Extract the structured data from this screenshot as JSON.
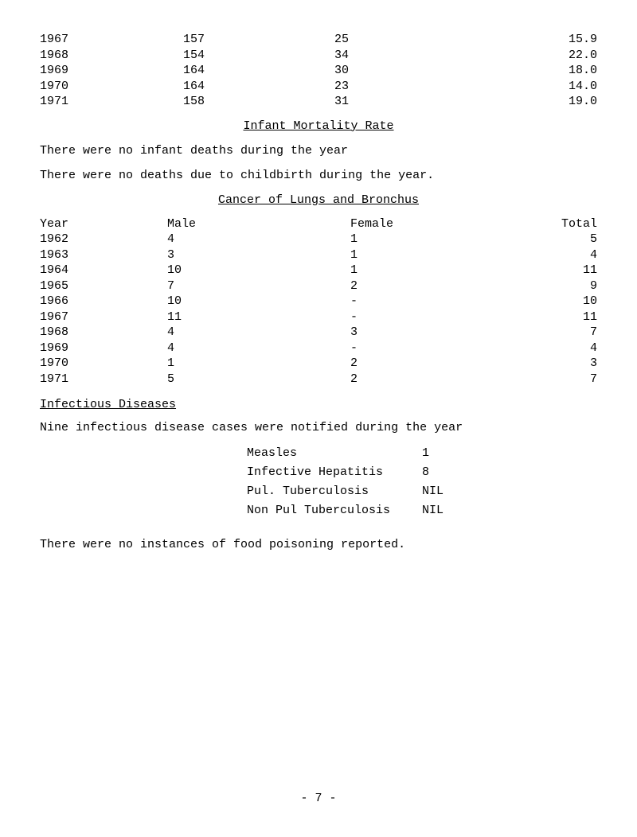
{
  "top_table": {
    "rows": [
      {
        "year": "1967",
        "a": "157",
        "b": "25",
        "c": "15.9"
      },
      {
        "year": "1968",
        "a": "154",
        "b": "34",
        "c": "22.0"
      },
      {
        "year": "1969",
        "a": "164",
        "b": "30",
        "c": "18.0"
      },
      {
        "year": "1970",
        "a": "164",
        "b": "23",
        "c": "14.0"
      },
      {
        "year": "1971",
        "a": "158",
        "b": "31",
        "c": "19.0"
      }
    ]
  },
  "infant_title": "Infant Mortality Rate",
  "infant_p1": "There were no infant deaths during the year",
  "infant_p2": "There were no deaths due to childbirth during the year.",
  "cancer_title": "Cancer of Lungs and Bronchus",
  "cancer_head": {
    "c1": "Year",
    "c2": "Male",
    "c3": "Female",
    "c4": "Total"
  },
  "cancer_rows": [
    {
      "y": "1962",
      "m": "4",
      "f": "1",
      "t": "5"
    },
    {
      "y": "1963",
      "m": "3",
      "f": "1",
      "t": "4"
    },
    {
      "y": "1964",
      "m": "10",
      "f": "1",
      "t": "11"
    },
    {
      "y": "1965",
      "m": "7",
      "f": "2",
      "t": "9"
    },
    {
      "y": "1966",
      "m": "10",
      "f": "-",
      "t": "10"
    },
    {
      "y": "1967",
      "m": "11",
      "f": "-",
      "t": "11"
    },
    {
      "y": "1968",
      "m": "4",
      "f": "3",
      "t": "7"
    },
    {
      "y": "1969",
      "m": "4",
      "f": "-",
      "t": "4"
    },
    {
      "y": "1970",
      "m": "1",
      "f": "2",
      "t": "3"
    },
    {
      "y": "1971",
      "m": "5",
      "f": "2",
      "t": "7"
    }
  ],
  "inf_diseases_title": "Infectious Diseases",
  "inf_para": "Nine infectious disease cases were notified during the year",
  "notifications": [
    {
      "name": "Measles",
      "val": "1"
    },
    {
      "name": "Infective Hepatitis",
      "val": "8"
    },
    {
      "name": "Pul. Tuberculosis",
      "val": "NIL"
    },
    {
      "name": "Non Pul Tuberculosis",
      "val": "NIL"
    }
  ],
  "food_para": "There were no instances of food poisoning reported.",
  "page_num": "- 7 -"
}
